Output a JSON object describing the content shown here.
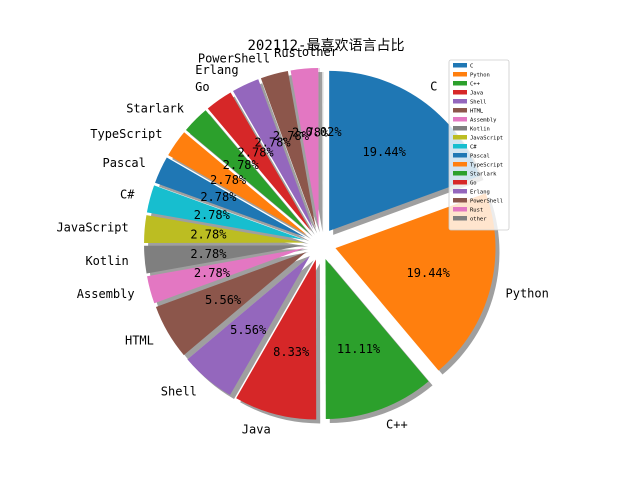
{
  "chart_data": {
    "type": "pie",
    "title": "202112-最喜欢语言占比",
    "slices": [
      {
        "label": "C",
        "value": 19.44,
        "pct_label": "19.44%",
        "color": "#1f77b4",
        "explode": 0.1
      },
      {
        "label": "Python",
        "value": 19.44,
        "pct_label": "19.44%",
        "color": "#ff7f0e",
        "explode": 0.1
      },
      {
        "label": "C++",
        "value": 11.11,
        "pct_label": "11.11%",
        "color": "#2ca02c",
        "explode": 0.1
      },
      {
        "label": "Java",
        "value": 8.33,
        "pct_label": "8.33%",
        "color": "#d62728",
        "explode": 0.1
      },
      {
        "label": "Shell",
        "value": 5.56,
        "pct_label": "5.56%",
        "color": "#9467bd",
        "explode": 0.1
      },
      {
        "label": "HTML",
        "value": 5.56,
        "pct_label": "5.56%",
        "color": "#8c564b",
        "explode": 0.1
      },
      {
        "label": "Assembly",
        "value": 2.78,
        "pct_label": "2.78%",
        "color": "#e377c2",
        "explode": 0.1
      },
      {
        "label": "Kotlin",
        "value": 2.78,
        "pct_label": "2.78%",
        "color": "#7f7f7f",
        "explode": 0.1
      },
      {
        "label": "JavaScript",
        "value": 2.78,
        "pct_label": "2.78%",
        "color": "#bcbd22",
        "explode": 0.1
      },
      {
        "label": "C#",
        "value": 2.78,
        "pct_label": "2.78%",
        "color": "#17becf",
        "explode": 0.1
      },
      {
        "label": "Pascal",
        "value": 2.78,
        "pct_label": "2.78%",
        "color": "#1f77b4",
        "explode": 0.1
      },
      {
        "label": "TypeScript",
        "value": 2.78,
        "pct_label": "2.78%",
        "color": "#ff7f0e",
        "explode": 0.1
      },
      {
        "label": "Starlark",
        "value": 2.78,
        "pct_label": "2.78%",
        "color": "#2ca02c",
        "explode": 0.1
      },
      {
        "label": "Go",
        "value": 2.78,
        "pct_label": "2.78%",
        "color": "#d62728",
        "explode": 0.1
      },
      {
        "label": "Erlang",
        "value": 2.78,
        "pct_label": "2.78%",
        "color": "#9467bd",
        "explode": 0.1
      },
      {
        "label": "PowerShell",
        "value": 2.78,
        "pct_label": "2.78%",
        "color": "#8c564b",
        "explode": 0.1
      },
      {
        "label": "Rust",
        "value": 2.78,
        "pct_label": "2.78%",
        "color": "#e377c2",
        "explode": 0.1
      },
      {
        "label": "other",
        "value": -0.02,
        "pct_label": "-0.02%",
        "color": "#7f7f7f",
        "explode": 0.1
      }
    ],
    "start_angle_deg": 90,
    "direction": "clockwise",
    "shadow": true,
    "legend": {
      "placement": "upper-right",
      "entries": [
        "C",
        "Python",
        "C++",
        "Java",
        "Shell",
        "HTML",
        "Assembly",
        "Kotlin",
        "JavaScript",
        "C#",
        "Pascal",
        "TypeScript",
        "Starlark",
        "Go",
        "Erlang",
        "PowerShell",
        "Rust",
        "other"
      ]
    }
  }
}
